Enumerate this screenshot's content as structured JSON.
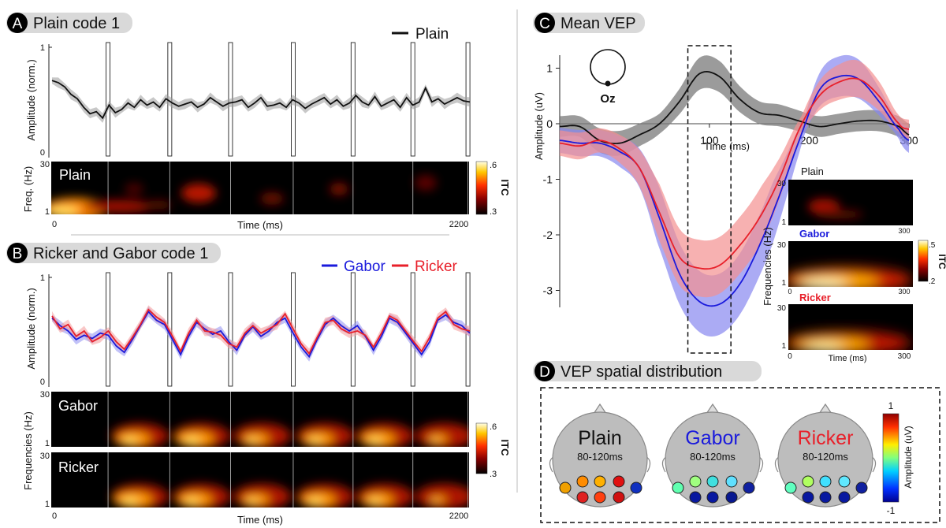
{
  "colors": {
    "plain": "#111111",
    "gabor": "#1a1adc",
    "ricker": "#e8202a",
    "header_bg": "#d9d9d9",
    "head_fill": "#bdbdbd",
    "shade_plain": "#9a9a9a",
    "shade_gabor": "#8f8ff2",
    "shade_ricker": "#f49a9a"
  },
  "panels": {
    "A": {
      "letter": "A",
      "title": "Plain code 1"
    },
    "B": {
      "letter": "B",
      "title": "Ricker and Gabor code 1"
    },
    "C": {
      "letter": "C",
      "title": "Mean VEP"
    },
    "D": {
      "letter": "D",
      "title": "VEP spatial distribution"
    }
  },
  "chart_data": [
    {
      "id": "A-amplitude",
      "type": "line",
      "legend": [
        "Plain"
      ],
      "ylabel": "Amplitude (norm.)",
      "yticks": [
        "1",
        "0"
      ],
      "ylim": [
        0,
        1
      ],
      "xlim": [
        0,
        2200
      ],
      "flash_markers_ms": [
        295,
        620,
        940,
        1270,
        1585,
        1900,
        2190
      ],
      "series": [
        {
          "name": "Plain",
          "values": [
            0.69,
            0.67,
            0.63,
            0.56,
            0.52,
            0.44,
            0.38,
            0.4,
            0.34,
            0.46,
            0.39,
            0.42,
            0.48,
            0.44,
            0.51,
            0.46,
            0.49,
            0.44,
            0.52,
            0.48,
            0.45,
            0.47,
            0.49,
            0.44,
            0.47,
            0.53,
            0.49,
            0.45,
            0.48,
            0.49,
            0.51,
            0.44,
            0.48,
            0.53,
            0.45,
            0.46,
            0.48,
            0.44,
            0.51,
            0.48,
            0.43,
            0.47,
            0.5,
            0.53,
            0.47,
            0.51,
            0.45,
            0.48,
            0.55,
            0.49,
            0.46,
            0.54,
            0.45,
            0.48,
            0.51,
            0.44,
            0.53,
            0.46,
            0.49,
            0.62,
            0.49,
            0.52,
            0.47,
            0.5,
            0.53,
            0.5,
            0.49
          ]
        }
      ]
    },
    {
      "id": "A-itc",
      "type": "heatmap",
      "row_label": "Plain",
      "ylabel": "Freq. (Hz)",
      "yticks": [
        "30",
        "1"
      ],
      "xlabel": "Time (ms)",
      "xticks": [
        "0",
        "2200"
      ],
      "colorbar": {
        "label": "ITC",
        "max": ".6",
        "min": ".3"
      }
    },
    {
      "id": "B-amplitude",
      "type": "line",
      "legend": [
        "Gabor",
        "Ricker"
      ],
      "ylabel": "Amplitude (norm.)",
      "yticks": [
        "1",
        "0"
      ],
      "ylim": [
        0,
        1
      ],
      "xlim": [
        0,
        2200
      ],
      "flash_markers_ms": [
        295,
        620,
        940,
        1270,
        1585,
        1900,
        2190
      ],
      "series": [
        {
          "name": "Gabor",
          "values": [
            0.62,
            0.55,
            0.5,
            0.42,
            0.46,
            0.43,
            0.48,
            0.46,
            0.36,
            0.3,
            0.42,
            0.55,
            0.68,
            0.6,
            0.56,
            0.42,
            0.28,
            0.45,
            0.58,
            0.52,
            0.47,
            0.5,
            0.4,
            0.32,
            0.46,
            0.54,
            0.45,
            0.5,
            0.58,
            0.62,
            0.48,
            0.35,
            0.26,
            0.42,
            0.56,
            0.62,
            0.55,
            0.5,
            0.55,
            0.45,
            0.32,
            0.45,
            0.62,
            0.58,
            0.48,
            0.38,
            0.28,
            0.4,
            0.6,
            0.65,
            0.58,
            0.55,
            0.48
          ]
        },
        {
          "name": "Ricker",
          "values": [
            0.64,
            0.52,
            0.56,
            0.45,
            0.5,
            0.4,
            0.44,
            0.5,
            0.4,
            0.33,
            0.44,
            0.56,
            0.7,
            0.63,
            0.58,
            0.45,
            0.31,
            0.48,
            0.6,
            0.5,
            0.49,
            0.46,
            0.38,
            0.35,
            0.48,
            0.55,
            0.48,
            0.52,
            0.56,
            0.66,
            0.52,
            0.38,
            0.29,
            0.44,
            0.58,
            0.6,
            0.52,
            0.48,
            0.5,
            0.46,
            0.35,
            0.48,
            0.64,
            0.6,
            0.5,
            0.4,
            0.31,
            0.44,
            0.62,
            0.68,
            0.56,
            0.52,
            0.5
          ]
        }
      ]
    },
    {
      "id": "B-itc",
      "type": "heatmap",
      "rows": [
        "Gabor",
        "Ricker"
      ],
      "ylabel": "Frequencies (Hz)",
      "yticks": [
        "30",
        "1"
      ],
      "xlabel": "Time (ms)",
      "xticks": [
        "0",
        "2200"
      ],
      "colorbar": {
        "label": "ITC",
        "max": ".6",
        "min": ".3"
      }
    },
    {
      "id": "C-mean-vep",
      "type": "line",
      "ylabel": "Amplitude (uV)",
      "xlabel": "Time (ms)",
      "yticks": [
        "1",
        "0",
        "-1",
        "-2",
        "-3"
      ],
      "xticks": [
        "100",
        "200",
        "300"
      ],
      "xlim": [
        -50,
        300
      ],
      "ylim": [
        -3.9,
        1.1
      ],
      "window_ms": [
        80,
        120
      ],
      "electrode": "Oz",
      "x": [
        -50,
        -30,
        -10,
        10,
        30,
        50,
        70,
        90,
        110,
        130,
        150,
        170,
        190,
        210,
        230,
        250,
        270,
        290,
        300
      ],
      "series": [
        {
          "name": "Plain",
          "values": [
            -0.05,
            -0.05,
            -0.3,
            -0.35,
            -0.2,
            0.0,
            0.4,
            0.9,
            0.85,
            0.45,
            0.2,
            0.15,
            0.05,
            -0.05,
            0.0,
            0.05,
            0.05,
            -0.05,
            -0.2
          ]
        },
        {
          "name": "Gabor",
          "values": [
            -0.3,
            -0.35,
            -0.35,
            -0.5,
            -0.8,
            -1.7,
            -2.7,
            -3.2,
            -3.25,
            -2.9,
            -2.2,
            -1.3,
            -0.3,
            0.6,
            0.85,
            0.8,
            0.4,
            -0.1,
            -0.3
          ]
        },
        {
          "name": "Ricker",
          "values": [
            -0.35,
            -0.4,
            -0.3,
            -0.45,
            -0.8,
            -1.6,
            -2.4,
            -2.6,
            -2.55,
            -2.2,
            -1.7,
            -1.0,
            -0.1,
            0.5,
            0.75,
            0.8,
            0.5,
            0.0,
            -0.1
          ]
        }
      ]
    },
    {
      "id": "C-itc",
      "type": "heatmap",
      "rows": [
        "Plain",
        "Gabor",
        "Ricker"
      ],
      "ylabel": "Frequencies (Hz)",
      "yticks": [
        "30",
        "1"
      ],
      "xlabel": "Time (ms)",
      "xticks": [
        "0",
        "300"
      ],
      "colorbar": {
        "label": "ITC",
        "max": ".5",
        "min": ".2"
      }
    },
    {
      "id": "D-topography",
      "type": "heatmap",
      "heads": [
        {
          "label": "Plain",
          "window": "80-120ms"
        },
        {
          "label": "Gabor",
          "window": "80-120ms"
        },
        {
          "label": "Ricker",
          "window": "80-120ms"
        }
      ],
      "colorbar": {
        "label": "Amplitude (uV)",
        "max": "1",
        "min": "-1"
      }
    }
  ]
}
